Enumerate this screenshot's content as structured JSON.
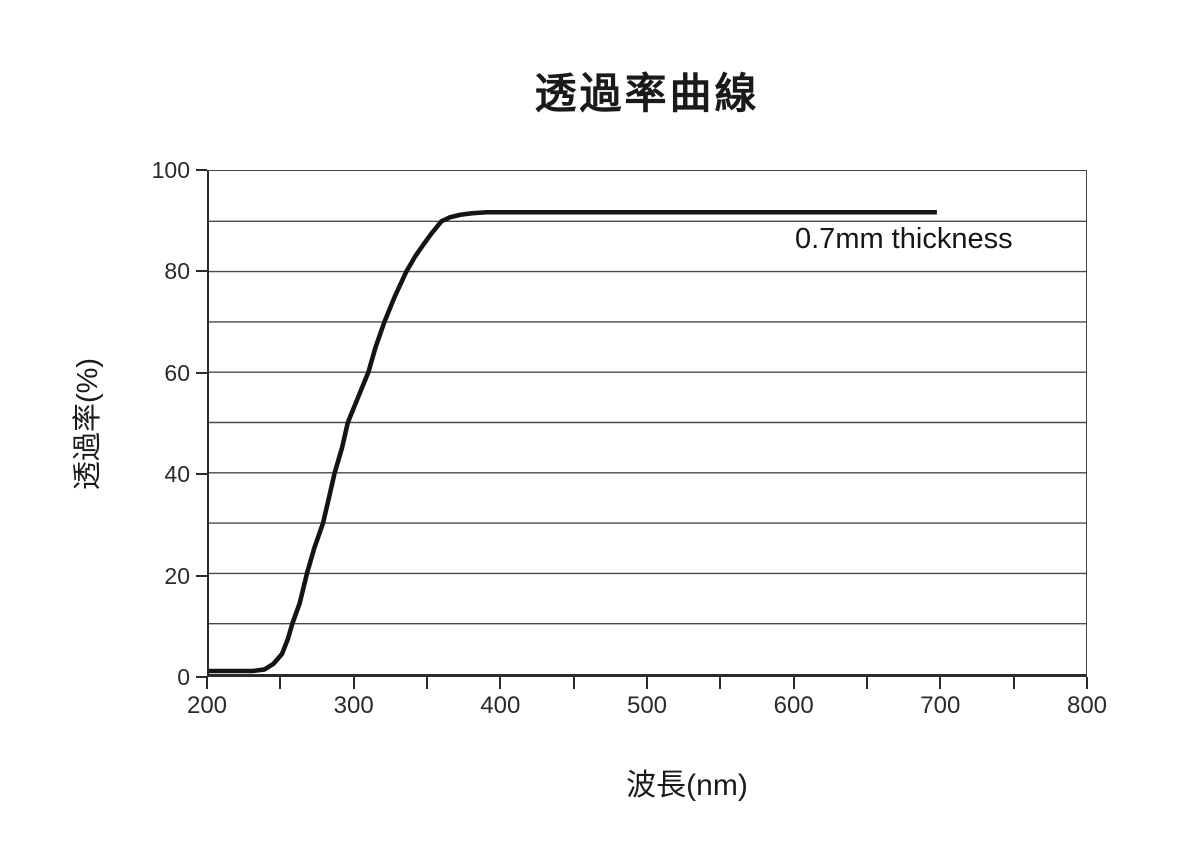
{
  "chart": {
    "title": "透過率曲線",
    "x_label": "波長(nm)",
    "y_label": "透過率(%)",
    "annotation": "0.7mm thickness"
  },
  "chart_data": {
    "type": "line",
    "title": "透過率曲線",
    "xlabel": "波長(nm)",
    "ylabel": "透過率(%)",
    "xlim": [
      200,
      800
    ],
    "ylim": [
      0,
      100
    ],
    "x_major_ticks": [
      200,
      300,
      400,
      500,
      600,
      700,
      800
    ],
    "x_minor_ticks": [
      250,
      350,
      450,
      550,
      650,
      750
    ],
    "y_ticks": [
      0,
      20,
      40,
      60,
      80,
      100
    ],
    "y_grid_step": 10,
    "grid": "horizontal gridlines every 10%",
    "legend_position": "none",
    "annotation": {
      "text": "0.7mm thickness",
      "x_data": 540,
      "y_data": 85
    },
    "colors": {
      "line": "#141414",
      "grid": "#4a4a4a",
      "axis": "#2b2b2b"
    },
    "series": [
      {
        "name": "transmittance 0.7mm thickness",
        "points": [
          [
            200,
            0.6
          ],
          [
            210,
            0.6
          ],
          [
            220,
            0.6
          ],
          [
            230,
            0.6
          ],
          [
            238,
            0.9
          ],
          [
            244,
            2
          ],
          [
            250,
            4
          ],
          [
            254,
            7
          ],
          [
            257,
            10
          ],
          [
            262,
            14
          ],
          [
            267,
            20
          ],
          [
            272,
            25
          ],
          [
            278,
            30
          ],
          [
            282,
            35
          ],
          [
            286,
            40
          ],
          [
            291,
            45
          ],
          [
            295,
            50
          ],
          [
            302,
            55
          ],
          [
            309,
            60
          ],
          [
            314,
            65
          ],
          [
            320,
            70
          ],
          [
            327,
            75
          ],
          [
            335,
            80
          ],
          [
            341,
            83
          ],
          [
            347,
            85.5
          ],
          [
            352,
            87.5
          ],
          [
            359,
            90
          ],
          [
            365,
            90.8
          ],
          [
            372,
            91.3
          ],
          [
            380,
            91.6
          ],
          [
            390,
            91.8
          ],
          [
            400,
            91.8
          ],
          [
            450,
            91.8
          ],
          [
            500,
            91.8
          ],
          [
            550,
            91.8
          ],
          [
            600,
            91.8
          ],
          [
            650,
            91.8
          ],
          [
            698,
            91.8
          ]
        ]
      }
    ]
  }
}
